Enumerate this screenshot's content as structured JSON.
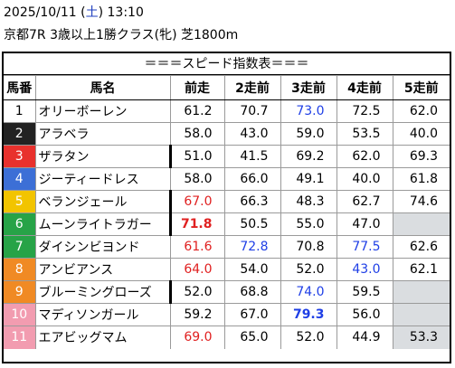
{
  "header": {
    "date_prefix": "2025/10/11 (",
    "weekday": "土",
    "date_suffix": ") 13:10",
    "race_line": "京都7R 3歳以上1勝クラス(牝) 芝1800m"
  },
  "table_title": "＝＝＝スピード指数表＝＝＝",
  "columns": [
    "馬番",
    "馬名",
    "前走",
    "2走前",
    "3走前",
    "4走前",
    "5走前"
  ],
  "colors": {
    "blue_text": "#1f3fe6",
    "red_text": "#e02020",
    "empty_cell": "#dadde0",
    "frame_1": "#ffffff",
    "frame_2": "#222222",
    "frame_3": "#e8312d",
    "frame_4": "#3c6fd6",
    "frame_5": "#f2c400",
    "frame_6": "#27a347",
    "frame_7": "#f08a24",
    "frame_8": "#f29cb0"
  },
  "rows": [
    {
      "no": "1",
      "bg": "#ffffff",
      "fg": "#000000",
      "name": "オリーボーレン",
      "mark": false,
      "vals": [
        {
          "v": "61.2"
        },
        {
          "v": "70.7"
        },
        {
          "v": "73.0",
          "c": "blue"
        },
        {
          "v": "72.5"
        },
        {
          "v": "62.0"
        }
      ]
    },
    {
      "no": "2",
      "bg": "#222222",
      "fg": "#ffffff",
      "name": "アラベラ",
      "mark": false,
      "vals": [
        {
          "v": "58.0"
        },
        {
          "v": "43.0"
        },
        {
          "v": "59.0"
        },
        {
          "v": "53.5"
        },
        {
          "v": "40.0"
        }
      ]
    },
    {
      "no": "3",
      "bg": "#e8312d",
      "fg": "#ffffff",
      "name": "ザラタン",
      "mark": true,
      "vals": [
        {
          "v": "51.0"
        },
        {
          "v": "41.5"
        },
        {
          "v": "69.2"
        },
        {
          "v": "62.0"
        },
        {
          "v": "69.3"
        }
      ]
    },
    {
      "no": "4",
      "bg": "#3c6fd6",
      "fg": "#ffffff",
      "name": "ジーティードレス",
      "mark": false,
      "vals": [
        {
          "v": "58.0"
        },
        {
          "v": "66.0"
        },
        {
          "v": "49.1"
        },
        {
          "v": "40.0"
        },
        {
          "v": "61.8"
        }
      ]
    },
    {
      "no": "5",
      "bg": "#f2c400",
      "fg": "#ffffff",
      "name": "ベランジェール",
      "mark": true,
      "vals": [
        {
          "v": "67.0",
          "c": "red"
        },
        {
          "v": "66.3"
        },
        {
          "v": "48.3"
        },
        {
          "v": "62.7"
        },
        {
          "v": "74.6"
        }
      ]
    },
    {
      "no": "6",
      "bg": "#27a347",
      "fg": "#ffffff",
      "name": "ムーンライトラガー",
      "mark": true,
      "vals": [
        {
          "v": "71.8",
          "c": "red",
          "b": true
        },
        {
          "v": "50.5"
        },
        {
          "v": "55.0"
        },
        {
          "v": "47.0"
        },
        {
          "v": "",
          "gray": true
        }
      ]
    },
    {
      "no": "7",
      "bg": "#27a347",
      "fg": "#ffffff",
      "name": "ダイシンビヨンド",
      "mark": false,
      "vals": [
        {
          "v": "61.6",
          "c": "red"
        },
        {
          "v": "72.8",
          "c": "blue"
        },
        {
          "v": "70.8"
        },
        {
          "v": "77.5",
          "c": "blue"
        },
        {
          "v": "62.6"
        }
      ]
    },
    {
      "no": "8",
      "bg": "#f08a24",
      "fg": "#ffffff",
      "name": "アンビアンス",
      "mark": false,
      "vals": [
        {
          "v": "64.0",
          "c": "red"
        },
        {
          "v": "54.0"
        },
        {
          "v": "52.0"
        },
        {
          "v": "43.0",
          "c": "blue"
        },
        {
          "v": "62.1"
        }
      ]
    },
    {
      "no": "9",
      "bg": "#f08a24",
      "fg": "#ffffff",
      "name": "ブルーミングローズ",
      "mark": true,
      "vals": [
        {
          "v": "52.0"
        },
        {
          "v": "68.8"
        },
        {
          "v": "74.0",
          "c": "blue"
        },
        {
          "v": "59.5"
        },
        {
          "v": "",
          "gray": true
        }
      ]
    },
    {
      "no": "10",
      "bg": "#f29cb0",
      "fg": "#ffffff",
      "name": "マディソンガール",
      "mark": false,
      "vals": [
        {
          "v": "59.2"
        },
        {
          "v": "67.0"
        },
        {
          "v": "79.3",
          "c": "blue",
          "b": true
        },
        {
          "v": "56.0"
        },
        {
          "v": "",
          "gray": true
        }
      ]
    },
    {
      "no": "11",
      "bg": "#f29cb0",
      "fg": "#ffffff",
      "name": "エアビッグマム",
      "mark": false,
      "vals": [
        {
          "v": "69.0",
          "c": "red"
        },
        {
          "v": "65.0"
        },
        {
          "v": "52.0"
        },
        {
          "v": "44.9"
        },
        {
          "v": "53.3",
          "gray": true
        }
      ]
    }
  ]
}
